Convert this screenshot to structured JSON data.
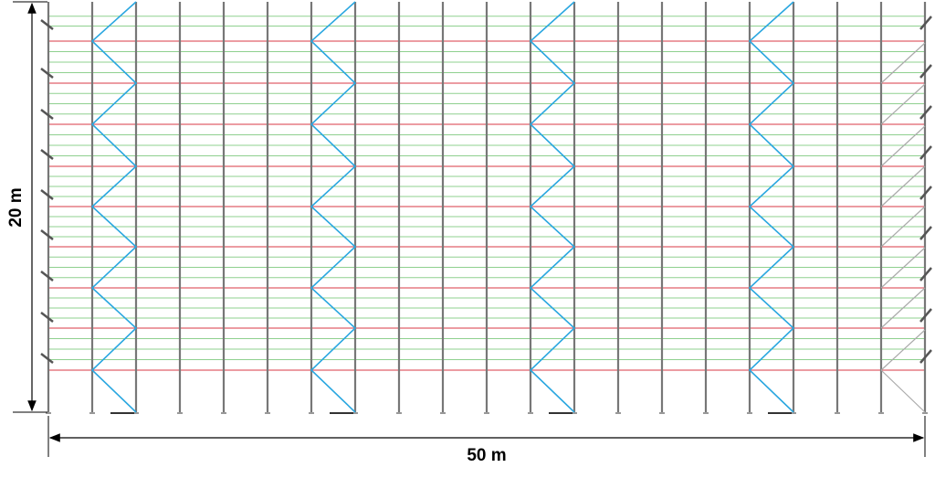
{
  "dimensions": {
    "height_label": "20 m",
    "width_label": "50 m"
  }
}
